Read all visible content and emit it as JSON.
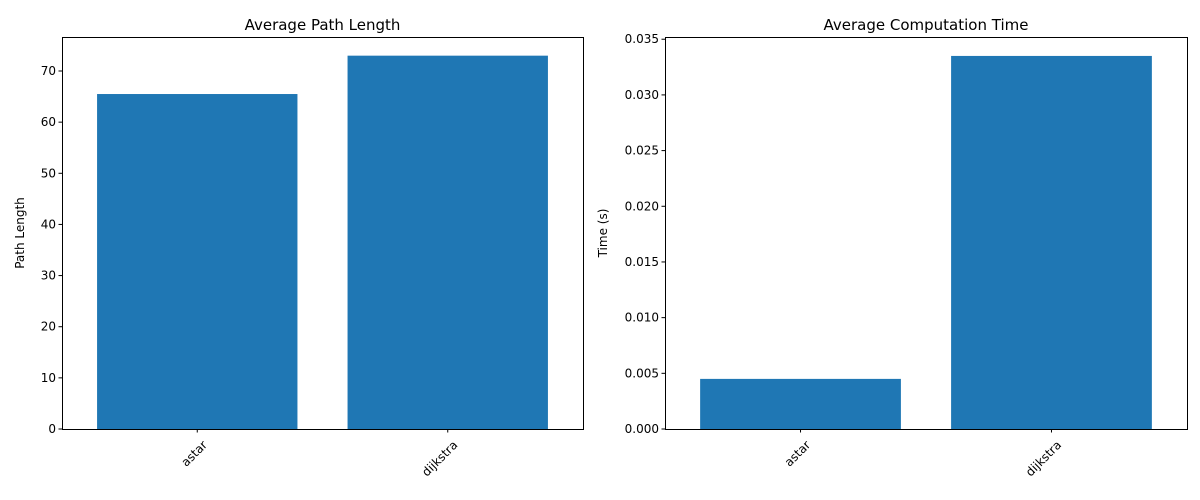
{
  "chart_data": [
    {
      "type": "bar",
      "title": "Average Path Length",
      "xlabel": "",
      "ylabel": "Path Length",
      "categories": [
        "astar",
        "dijkstra"
      ],
      "values": [
        65.5,
        73.0
      ],
      "ylim": [
        0,
        76.65
      ],
      "yticks": [
        0,
        10,
        20,
        30,
        40,
        50,
        60,
        70
      ],
      "ytick_labels": [
        "0",
        "10",
        "20",
        "30",
        "40",
        "50",
        "60",
        "70"
      ],
      "xtick_rotation": 45,
      "bar_color": "#1f77b4",
      "grid": false,
      "legend": "none"
    },
    {
      "type": "bar",
      "title": "Average Computation Time",
      "xlabel": "",
      "ylabel": "Time (s)",
      "categories": [
        "astar",
        "dijkstra"
      ],
      "values": [
        0.0045,
        0.0335
      ],
      "ylim": [
        0,
        0.0352
      ],
      "yticks": [
        0,
        0.005,
        0.01,
        0.015,
        0.02,
        0.025,
        0.03,
        0.035
      ],
      "ytick_labels": [
        "0.000",
        "0.005",
        "0.010",
        "0.015",
        "0.020",
        "0.025",
        "0.030",
        "0.035"
      ],
      "xtick_rotation": 45,
      "bar_color": "#1f77b4",
      "grid": false,
      "legend": "none"
    }
  ]
}
